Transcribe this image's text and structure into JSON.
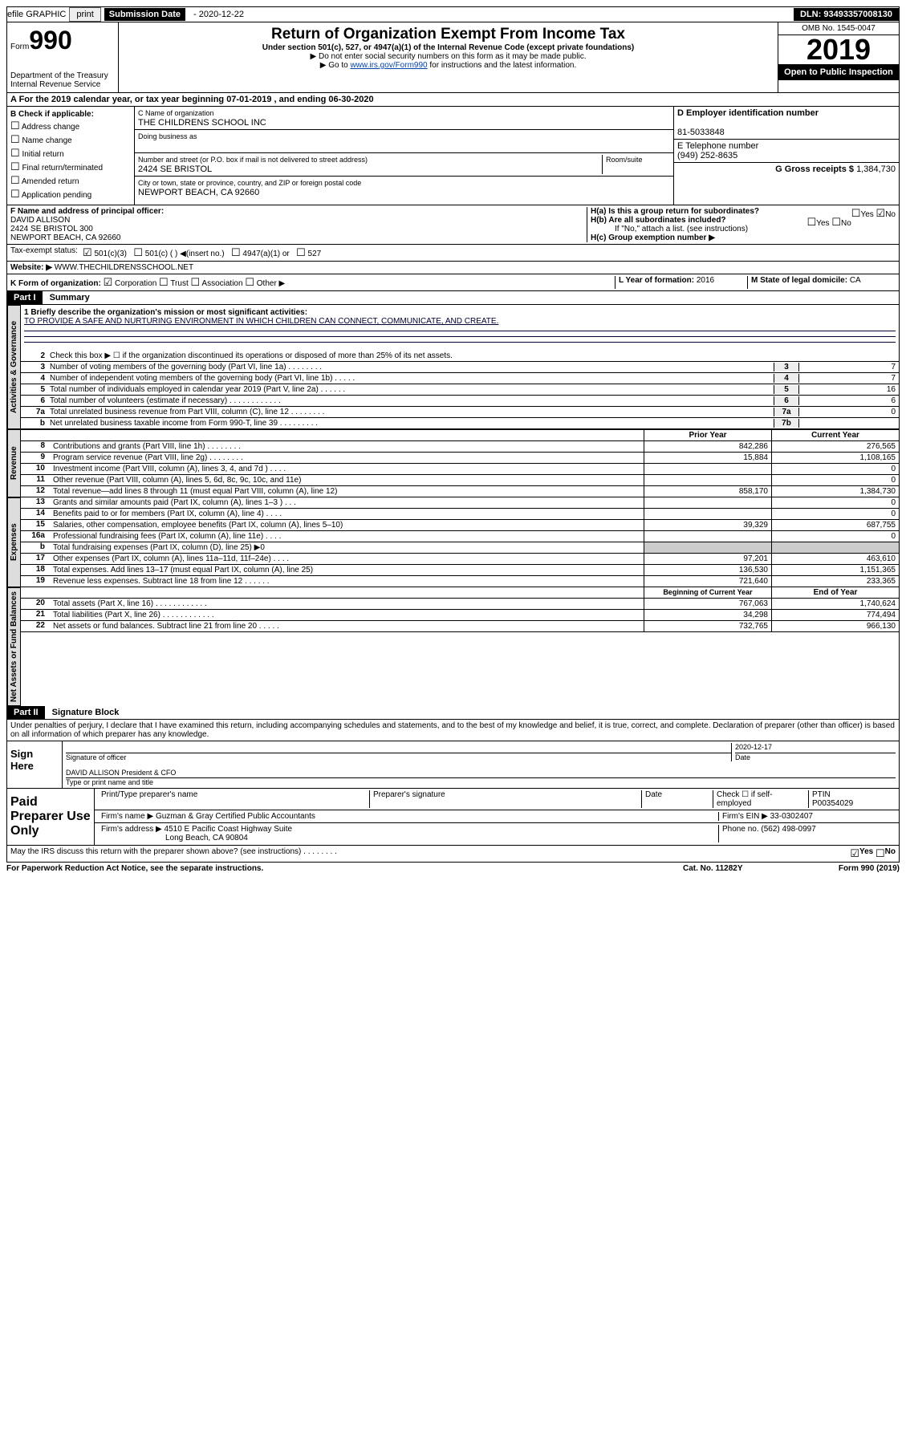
{
  "topbar": {
    "efile_label": "efile GRAPHIC",
    "print_btn": "print",
    "sub_label": "Submission Date",
    "sub_date": "- 2020-12-22",
    "dln": "DLN: 93493357008130"
  },
  "header": {
    "form_label": "Form",
    "form_num": "990",
    "dept1": "Department of the Treasury",
    "dept2": "Internal Revenue Service",
    "title": "Return of Organization Exempt From Income Tax",
    "sub": "Under section 501(c), 527, or 4947(a)(1) of the Internal Revenue Code (except private foundations)",
    "note1": "▶ Do not enter social security numbers on this form as it may be made public.",
    "note2_pre": "▶ Go to ",
    "note2_link": "www.irs.gov/Form990",
    "note2_post": " for instructions and the latest information.",
    "omb": "OMB No. 1545-0047",
    "year": "2019",
    "open": "Open to Public Inspection"
  },
  "line_a": "A For the 2019 calendar year, or tax year beginning 07-01-2019   , and ending 06-30-2020",
  "box_b": {
    "label": "B Check if applicable:",
    "opts": [
      "Address change",
      "Name change",
      "Initial return",
      "Final return/terminated",
      "Amended return",
      "Application pending"
    ]
  },
  "box_c": {
    "label": "C Name of organization",
    "name": "THE CHILDRENS SCHOOL INC",
    "dba_label": "Doing business as",
    "addr_label": "Number and street (or P.O. box if mail is not delivered to street address)",
    "room_label": "Room/suite",
    "addr": "2424 SE BRISTOL",
    "city_label": "City or town, state or province, country, and ZIP or foreign postal code",
    "city": "NEWPORT BEACH, CA  92660"
  },
  "box_right": {
    "d_label": "D Employer identification number",
    "ein": "81-5033848",
    "e_label": "E Telephone number",
    "phone": "(949) 252-8635",
    "g_label": "G Gross receipts $",
    "g_val": "1,384,730"
  },
  "box_f": {
    "label": "F Name and address of principal officer:",
    "name": "DAVID ALLISON",
    "addr1": "2424 SE BRISTOL 300",
    "addr2": "NEWPORT BEACH, CA  92660"
  },
  "box_h": {
    "ha": "H(a)  Is this a group return for subordinates?",
    "hb": "H(b)  Are all subordinates included?",
    "hb_note": "If \"No,\" attach a list. (see instructions)",
    "hc": "H(c)  Group exemption number ▶",
    "yes": "Yes",
    "no": "No"
  },
  "tax_status": {
    "label": "Tax-exempt status:",
    "c3": "501(c)(3)",
    "c_other": "501(c) (  ) ◀(insert no.)",
    "a1": "4947(a)(1) or",
    "s527": "527"
  },
  "line_j": {
    "label": "Website: ▶",
    "val": "WWW.THECHILDRENSSCHOOL.NET"
  },
  "line_k": {
    "label": "K Form of organization:",
    "corp": "Corporation",
    "trust": "Trust",
    "assoc": "Association",
    "other": "Other ▶",
    "l_label": "L Year of formation:",
    "l_val": "2016",
    "m_label": "M State of legal domicile:",
    "m_val": "CA"
  },
  "parts": {
    "p1": "Part I",
    "p1_title": "Summary",
    "p2": "Part II",
    "p2_title": "Signature Block"
  },
  "summary": {
    "vlabels": {
      "gov": "Activities & Governance",
      "rev": "Revenue",
      "exp": "Expenses",
      "net": "Net Assets or Fund Balances"
    },
    "line1_label": "1  Briefly describe the organization's mission or most significant activities:",
    "mission": "TO PROVIDE A SAFE AND NURTURING ENVIRONMENT IN WHICH CHILDREN CAN CONNECT, COMMUNICATE, AND CREATE.",
    "line2": "Check this box ▶ ☐ if the organization discontinued its operations or disposed of more than 25% of its net assets.",
    "lines_num": [
      {
        "n": "3",
        "desc": "Number of voting members of the governing body (Part VI, line 1a)  .    .    .    .    .    .    .    .",
        "box": "3",
        "val": "7"
      },
      {
        "n": "4",
        "desc": "Number of independent voting members of the governing body (Part VI, line 1b)  .    .    .    .    .",
        "box": "4",
        "val": "7"
      },
      {
        "n": "5",
        "desc": "Total number of individuals employed in calendar year 2019 (Part V, line 2a)  .    .    .    .    .    .",
        "box": "5",
        "val": "16"
      },
      {
        "n": "6",
        "desc": "Total number of volunteers (estimate if necessary)  .    .    .    .    .    .    .    .    .    .    .    .",
        "box": "6",
        "val": "6"
      },
      {
        "n": "7a",
        "desc": "Total unrelated business revenue from Part VIII, column (C), line 12  .    .    .    .    .    .    .    .",
        "box": "7a",
        "val": "0"
      },
      {
        "n": "b",
        "desc": "Net unrelated business taxable income from Form 990-T, line 39  .    .    .    .    .    .    .    .    .",
        "box": "7b",
        "val": ""
      }
    ],
    "col_prior": "Prior Year",
    "col_curr": "Current Year",
    "col_beg": "Beginning of Current Year",
    "col_end": "End of Year",
    "revenue": [
      {
        "n": "8",
        "desc": "Contributions and grants (Part VIII, line 1h)  .    .    .    .    .    .    .    .",
        "p": "842,286",
        "c": "276,565"
      },
      {
        "n": "9",
        "desc": "Program service revenue (Part VIII, line 2g)  .    .    .    .    .    .    .    .",
        "p": "15,884",
        "c": "1,108,165"
      },
      {
        "n": "10",
        "desc": "Investment income (Part VIII, column (A), lines 3, 4, and 7d )  .    .    .    .",
        "p": "",
        "c": "0"
      },
      {
        "n": "11",
        "desc": "Other revenue (Part VIII, column (A), lines 5, 6d, 8c, 9c, 10c, and 11e)",
        "p": "",
        "c": "0"
      },
      {
        "n": "12",
        "desc": "Total revenue—add lines 8 through 11 (must equal Part VIII, column (A), line 12)",
        "p": "858,170",
        "c": "1,384,730"
      }
    ],
    "expenses": [
      {
        "n": "13",
        "desc": "Grants and similar amounts paid (Part IX, column (A), lines 1–3 )  .    .    .",
        "p": "",
        "c": "0"
      },
      {
        "n": "14",
        "desc": "Benefits paid to or for members (Part IX, column (A), line 4)  .    .    .    .",
        "p": "",
        "c": "0"
      },
      {
        "n": "15",
        "desc": "Salaries, other compensation, employee benefits (Part IX, column (A), lines 5–10)",
        "p": "39,329",
        "c": "687,755"
      },
      {
        "n": "16a",
        "desc": "Professional fundraising fees (Part IX, column (A), line 11e)  .    .    .    .",
        "p": "",
        "c": "0"
      },
      {
        "n": "b",
        "desc": "Total fundraising expenses (Part IX, column (D), line 25) ▶0",
        "p": "—",
        "c": "—"
      },
      {
        "n": "17",
        "desc": "Other expenses (Part IX, column (A), lines 11a–11d, 11f–24e)  .    .    .    .",
        "p": "97,201",
        "c": "463,610"
      },
      {
        "n": "18",
        "desc": "Total expenses. Add lines 13–17 (must equal Part IX, column (A), line 25)",
        "p": "136,530",
        "c": "1,151,365"
      },
      {
        "n": "19",
        "desc": "Revenue less expenses. Subtract line 18 from line 12  .    .    .    .    .    .",
        "p": "721,640",
        "c": "233,365"
      }
    ],
    "netassets": [
      {
        "n": "20",
        "desc": "Total assets (Part X, line 16)  .    .    .    .    .    .    .    .    .    .    .    .",
        "p": "767,063",
        "c": "1,740,624"
      },
      {
        "n": "21",
        "desc": "Total liabilities (Part X, line 26)  .    .    .    .    .    .    .    .    .    .    .    .",
        "p": "34,298",
        "c": "774,494"
      },
      {
        "n": "22",
        "desc": "Net assets or fund balances. Subtract line 21 from line 20  .    .    .    .    .",
        "p": "732,765",
        "c": "966,130"
      }
    ]
  },
  "sig": {
    "perjury": "Under penalties of perjury, I declare that I have examined this return, including accompanying schedules and statements, and to the best of my knowledge and belief, it is true, correct, and complete. Declaration of preparer (other than officer) is based on all information of which preparer has any knowledge.",
    "sign_here": "Sign Here",
    "sig_officer": "Signature of officer",
    "date_label": "Date",
    "sig_date": "2020-12-17",
    "name": "DAVID ALLISON  President & CFO",
    "name_label": "Type or print name and title",
    "paid_label": "Paid Preparer Use Only",
    "prep_name_label": "Print/Type preparer's name",
    "prep_sig_label": "Preparer's signature",
    "check_self": "Check ☐ if self-employed",
    "ptin_label": "PTIN",
    "ptin": "P00354029",
    "firm_name_label": "Firm's name    ▶",
    "firm_name": "Guzman & Gray Certified Public Accountants",
    "firm_ein_label": "Firm's EIN ▶",
    "firm_ein": "33-0302407",
    "firm_addr_label": "Firm's address ▶",
    "firm_addr1": "4510 E Pacific Coast Highway Suite",
    "firm_addr2": "Long Beach, CA  90804",
    "phone_label": "Phone no.",
    "phone": "(562) 498-0997"
  },
  "footer": {
    "discuss": "May the IRS discuss this return with the preparer shown above? (see instructions)  .    .    .    .    .    .    .    .",
    "yes": "Yes",
    "no": "No",
    "paperwork": "For Paperwork Reduction Act Notice, see the separate instructions.",
    "cat": "Cat. No. 11282Y",
    "form": "Form 990 (2019)"
  }
}
